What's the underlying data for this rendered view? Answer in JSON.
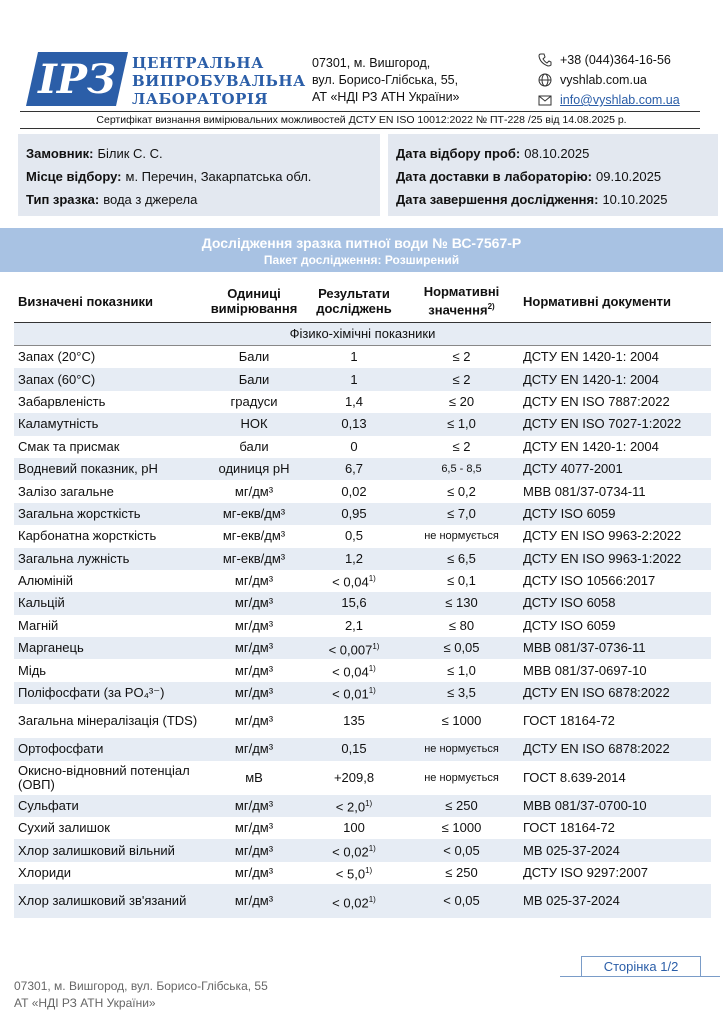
{
  "header": {
    "logo_text": "ІРЗ",
    "org": [
      "ЦЕНТРАЛЬНА",
      "ВИПРОБУВАЛЬНА",
      "ЛАБОРАТОРІЯ"
    ],
    "address": [
      "07301, м. Вишгород,",
      "вул. Борисо-Глібська, 55,",
      "АТ «НДІ РЗ АТН України»"
    ],
    "phone": "+38 (044)364-16-56",
    "site": "vyshlab.com.ua",
    "email": "info@vyshlab.com.ua",
    "certificate": "Сертифікат визнання вимірювальних можливостей ДСТУ EN ISO 10012:2022 № ПТ-228 /25 від 14.08.2025 р."
  },
  "info": {
    "left": [
      {
        "label": "Замовник:",
        "value": "Білик С. С."
      },
      {
        "label": "Місце відбору:",
        "value": "м. Перечин, Закарпатська обл."
      },
      {
        "label": "Тип зразка:",
        "value": "вода з джерела"
      }
    ],
    "right": [
      {
        "label": "Дата відбору проб:",
        "value": "08.10.2025"
      },
      {
        "label": "Дата доставки в лабораторію:",
        "value": "09.10.2025"
      },
      {
        "label": "Дата завершення дослідження:",
        "value": "10.10.2025"
      }
    ]
  },
  "banner": {
    "title": "Дослідження зразка питної води № ВС-7567-Р",
    "subtitle": "Пакет дослідження: Розширений"
  },
  "table": {
    "headers": [
      "Визначені показники",
      "Одиниці вимірювання",
      "Результати досліджень",
      "Нормативні значення",
      "Нормативні документи"
    ],
    "header_note": "2)",
    "section": "Фізико-хімічні показники",
    "rows": [
      {
        "name": "Запах (20°C)",
        "unit": "Бали",
        "result": "1",
        "norm": "≤ 2",
        "doc": "ДСТУ EN 1420-1: 2004"
      },
      {
        "name": "Запах (60°C)",
        "unit": "Бали",
        "result": "1",
        "norm": "≤ 2",
        "doc": "ДСТУ EN 1420-1: 2004"
      },
      {
        "name": "Забарвленість",
        "unit": "градуси",
        "result": "1,4",
        "norm": "≤ 20",
        "doc": "ДСТУ EN ISO 7887:2022"
      },
      {
        "name": "Каламутність",
        "unit": "НОК",
        "result": "0,13",
        "norm": "≤ 1,0",
        "doc": "ДСТУ EN ISO 7027-1:2022"
      },
      {
        "name": "Смак та присмак",
        "unit": "бали",
        "result": "0",
        "norm": "≤ 2",
        "doc": "ДСТУ EN 1420-1: 2004"
      },
      {
        "name": "Водневий показник, pH",
        "unit": "одиниця pH",
        "result": "6,7",
        "norm": "6,5 - 8,5",
        "doc": "ДСТУ 4077-2001"
      },
      {
        "name": "Залізо загальне",
        "unit": "мг/дм³",
        "result": "0,02",
        "norm": "≤ 0,2",
        "doc": "МВВ 081/37-0734-11"
      },
      {
        "name": "Загальна жорсткість",
        "unit": "мг-екв/дм³",
        "result": "0,95",
        "norm": "≤ 7,0",
        "doc": "ДСТУ ISO 6059"
      },
      {
        "name": "Карбонатна жорсткість",
        "unit": "мг-екв/дм³",
        "result": "0,5",
        "norm": "не нормується",
        "doc": "ДСТУ EN ISO 9963-2:2022"
      },
      {
        "name": "Загальна лужність",
        "unit": "мг-екв/дм³",
        "result": "1,2",
        "norm": "≤ 6,5",
        "doc": "ДСТУ EN ISO 9963-1:2022"
      },
      {
        "name": "Алюміній",
        "unit": "мг/дм³",
        "result": "< 0,04",
        "ref": "1)",
        "norm": "≤ 0,1",
        "doc": "ДСТУ ISO 10566:2017"
      },
      {
        "name": "Кальцій",
        "unit": "мг/дм³",
        "result": "15,6",
        "norm": "≤ 130",
        "doc": "ДСТУ ISO 6058"
      },
      {
        "name": "Магній",
        "unit": "мг/дм³",
        "result": "2,1",
        "norm": "≤ 80",
        "doc": "ДСТУ ISO 6059"
      },
      {
        "name": "Марганець",
        "unit": "мг/дм³",
        "result": "< 0,007",
        "ref": "1)",
        "norm": "≤ 0,05",
        "doc": "МВВ 081/37-0736-11"
      },
      {
        "name": "Мідь",
        "unit": "мг/дм³",
        "result": "< 0,04",
        "ref": "1)",
        "norm": "≤ 1,0",
        "doc": "МВВ 081/37-0697-10"
      },
      {
        "name": "Поліфосфати (за PO₄³⁻)",
        "unit": "мг/дм³",
        "result": "< 0,01",
        "ref": "1)",
        "norm": "≤ 3,5",
        "doc": "ДСТУ EN ISO 6878:2022"
      },
      {
        "name": "Загальна мінералізація (TDS)",
        "unit": "мг/дм³",
        "result": "135",
        "norm": "≤ 1000",
        "doc": "ГОСТ 18164-72"
      },
      {
        "name": "Ортофосфати",
        "unit": "мг/дм³",
        "result": "0,15",
        "norm": "не нормується",
        "doc": "ДСТУ EN ISO 6878:2022"
      },
      {
        "name": "Окисно-відновний потенціал (ОВП)",
        "unit": "мВ",
        "result": "+209,8",
        "norm": "не нормується",
        "doc": "ГОСТ 8.639-2014"
      },
      {
        "name": "Сульфати",
        "unit": "мг/дм³",
        "result": "< 2,0",
        "ref": "1)",
        "norm": "≤ 250",
        "doc": "МВВ 081/37-0700-10"
      },
      {
        "name": "Сухий залишок",
        "unit": "мг/дм³",
        "result": "100",
        "norm": "≤ 1000",
        "doc": "ГОСТ 18164-72"
      },
      {
        "name": "Хлор залишковий вільний",
        "unit": "мг/дм³",
        "result": "< 0,02",
        "ref": "1)",
        "norm": "< 0,05",
        "doc": "МВ 025-37-2024"
      },
      {
        "name": "Хлориди",
        "unit": "мг/дм³",
        "result": "< 5,0",
        "ref": "1)",
        "norm": "≤ 250",
        "doc": "ДСТУ ISO 9297:2007"
      },
      {
        "name": "Хлор залишковий зв'язаний",
        "unit": "мг/дм³",
        "result": "< 0,02",
        "ref": "1)",
        "norm": "< 0,05",
        "doc": "МВ 025-37-2024"
      }
    ]
  },
  "footer": {
    "page": "Сторінка 1/2",
    "address": [
      "07301, м. Вишгород, вул. Борисо-Глібська, 55",
      "АТ «НДІ РЗ АТН України»"
    ]
  }
}
